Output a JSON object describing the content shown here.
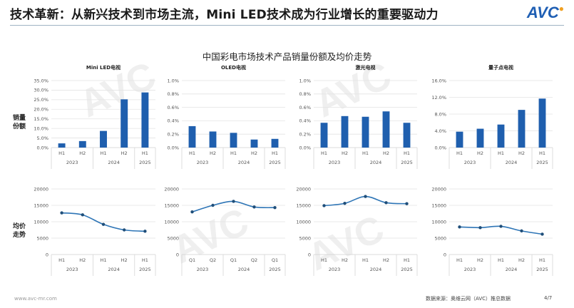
{
  "header": {
    "title": "技术革新：从新兴技术到市场主流，Mini LED技术成为行业增长的重要驱动力",
    "logo": "AVC"
  },
  "watermark": {
    "brand": "AVC",
    "cn": "奥维云网",
    "en": "ALL VIEW CLOUD"
  },
  "side_labels": {
    "share": "销量\n份额",
    "price": "均价\n走势"
  },
  "footer": {
    "website": "www.avc-mr.com",
    "source": "数据来源：奥维云网（AVC）推总数据",
    "page": "4/7"
  },
  "colors": {
    "bar": "#1f5fae",
    "line": "#2e75b6",
    "marker": "#1f4e79",
    "grid": "#e3e3e3"
  },
  "chart_data": {
    "title": "中国彩电市场技术产品销量份额及均价走势",
    "share_charts": [
      {
        "type": "bar",
        "title": "Mini LED电视",
        "categories": [
          "H1",
          "H2",
          "H1",
          "H2",
          "H1"
        ],
        "groups": [
          {
            "label": "2023",
            "span": 2
          },
          {
            "label": "2024",
            "span": 2
          },
          {
            "label": "2025",
            "span": 1
          }
        ],
        "values": [
          2.2,
          3.4,
          8.7,
          25.2,
          28.8
        ],
        "unit": "%",
        "ylim": [
          0,
          35
        ],
        "yticks": [
          "0.0%",
          "5.0%",
          "10.0%",
          "15.0%",
          "20.0%",
          "25.0%",
          "30.0%",
          "35.0%"
        ],
        "tick_values": [
          0,
          5,
          10,
          15,
          20,
          25,
          30,
          35
        ]
      },
      {
        "type": "bar",
        "title": "OLED电视",
        "categories": [
          "H1",
          "H2",
          "H1",
          "H2",
          "H1"
        ],
        "groups": [
          {
            "label": "2023",
            "span": 2
          },
          {
            "label": "2024",
            "span": 2
          },
          {
            "label": "2025",
            "span": 1
          }
        ],
        "values": [
          0.32,
          0.24,
          0.22,
          0.12,
          0.13
        ],
        "unit": "%",
        "ylim": [
          0,
          1.0
        ],
        "yticks": [
          "0.0%",
          "0.2%",
          "0.4%",
          "0.6%",
          "0.8%",
          "1.0%"
        ],
        "tick_values": [
          0,
          0.2,
          0.4,
          0.6,
          0.8,
          1.0
        ]
      },
      {
        "type": "bar",
        "title": "激光电视",
        "categories": [
          "H1",
          "H2",
          "H1",
          "H2",
          "H1"
        ],
        "groups": [
          {
            "label": "2023",
            "span": 2
          },
          {
            "label": "2024",
            "span": 2
          },
          {
            "label": "2025",
            "span": 1
          }
        ],
        "values": [
          0.37,
          0.47,
          0.46,
          0.54,
          0.37
        ],
        "unit": "%",
        "ylim": [
          0,
          1.0
        ],
        "yticks": [
          "0.0%",
          "0.2%",
          "0.4%",
          "0.6%",
          "0.8%",
          "1.0%"
        ],
        "tick_values": [
          0,
          0.2,
          0.4,
          0.6,
          0.8,
          1.0
        ]
      },
      {
        "type": "bar",
        "title": "量子点电视",
        "categories": [
          "H1",
          "H2",
          "H1",
          "H2",
          "H1"
        ],
        "groups": [
          {
            "label": "2023",
            "span": 2
          },
          {
            "label": "2024",
            "span": 2
          },
          {
            "label": "2025",
            "span": 1
          }
        ],
        "values": [
          3.8,
          4.5,
          5.5,
          9.0,
          11.7
        ],
        "unit": "%",
        "ylim": [
          0,
          16
        ],
        "yticks": [
          "0.0%",
          "4.0%",
          "8.0%",
          "12.0%",
          "16.0%"
        ],
        "tick_values": [
          0,
          4,
          8,
          12,
          16
        ]
      }
    ],
    "price_charts": [
      {
        "type": "line",
        "categories": [
          "H1",
          "H2",
          "H1",
          "H2",
          "H1"
        ],
        "groups": [
          {
            "label": "2023",
            "span": 2
          },
          {
            "label": "2024",
            "span": 2
          },
          {
            "label": "2025",
            "span": 1
          }
        ],
        "values": [
          12700,
          12100,
          9200,
          7500,
          7100
        ],
        "ylim": [
          0,
          20000
        ],
        "yticks": [
          "0",
          "5000",
          "10000",
          "15000",
          "20000"
        ],
        "tick_values": [
          0,
          5000,
          10000,
          15000,
          20000
        ]
      },
      {
        "type": "line",
        "categories": [
          "Q1",
          "Q2",
          "Q1",
          "Q2",
          "Q1"
        ],
        "groups": [
          {
            "label": "2023",
            "span": 2
          },
          {
            "label": "2024",
            "span": 2
          },
          {
            "label": "2025",
            "span": 1
          }
        ],
        "values": [
          13000,
          15000,
          16200,
          14500,
          14300
        ],
        "ylim": [
          0,
          20000
        ],
        "yticks": [
          "0",
          "5000",
          "10000",
          "15000",
          "20000"
        ],
        "tick_values": [
          0,
          5000,
          10000,
          15000,
          20000
        ]
      },
      {
        "type": "line",
        "categories": [
          "H1",
          "H2",
          "H1",
          "H2",
          "H1"
        ],
        "groups": [
          {
            "label": "2023",
            "span": 2
          },
          {
            "label": "2024",
            "span": 2
          },
          {
            "label": "2025",
            "span": 1
          }
        ],
        "values": [
          14900,
          15600,
          17700,
          15800,
          15500
        ],
        "ylim": [
          0,
          20000
        ],
        "yticks": [
          "0",
          "5000",
          "10000",
          "15000",
          "20000"
        ],
        "tick_values": [
          0,
          5000,
          10000,
          15000,
          20000
        ]
      },
      {
        "type": "line",
        "categories": [
          "H1",
          "H2",
          "H1",
          "H2",
          "H1"
        ],
        "groups": [
          {
            "label": "2023",
            "span": 2
          },
          {
            "label": "2024",
            "span": 2
          },
          {
            "label": "2025",
            "span": 1
          }
        ],
        "values": [
          8400,
          8200,
          8600,
          7200,
          6200
        ],
        "ylim": [
          0,
          20000
        ],
        "yticks": [
          "0",
          "5000",
          "10000",
          "15000",
          "20000"
        ],
        "tick_values": [
          0,
          5000,
          10000,
          15000,
          20000
        ]
      }
    ]
  }
}
